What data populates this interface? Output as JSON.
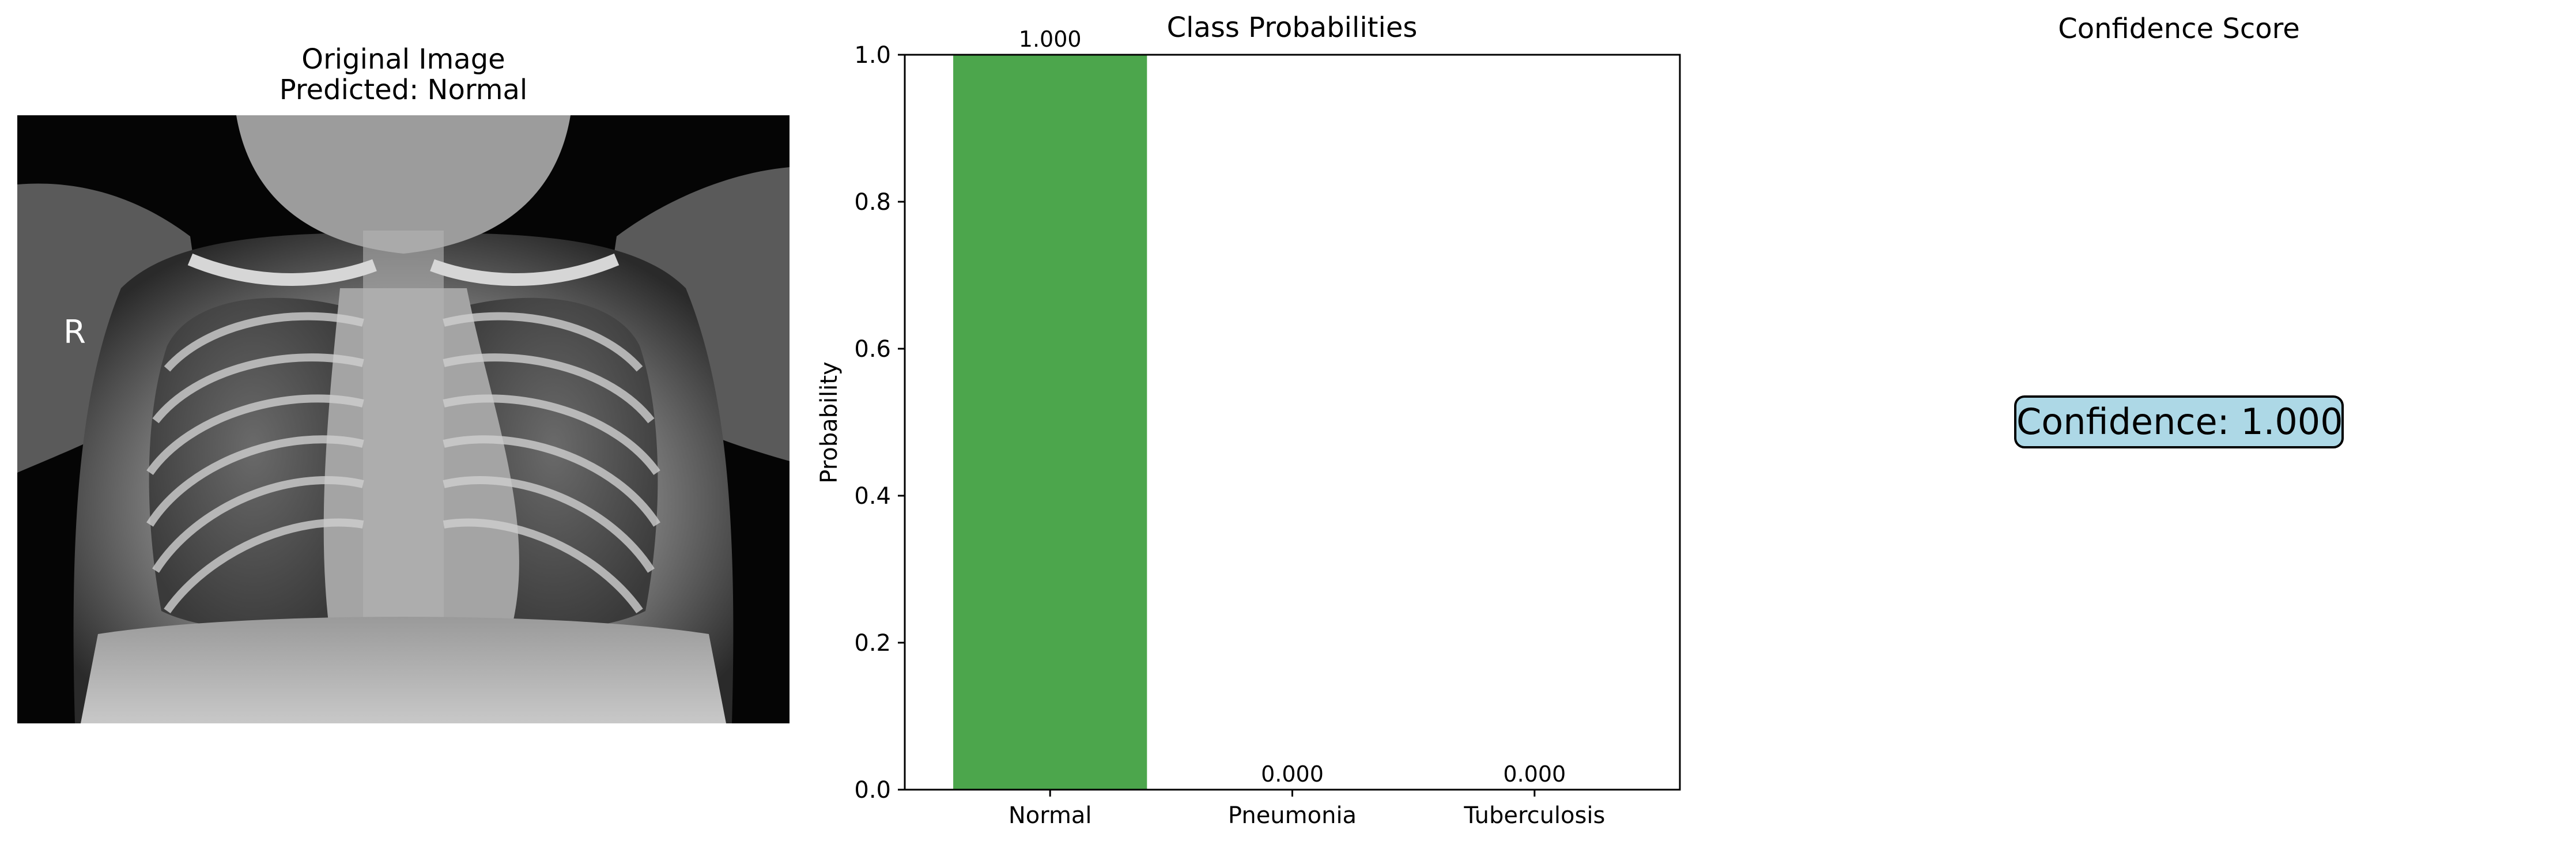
{
  "image_panel": {
    "title": "Original Image",
    "prediction": "Predicted: Normal",
    "marker": "R"
  },
  "confidence_panel": {
    "title": "Confidence Score",
    "label": "Confidence: 1.000",
    "box_color": "#add8e6"
  },
  "chart_data": {
    "type": "bar",
    "title": "Class Probabilities",
    "xlabel": "",
    "ylabel": "Probability",
    "categories": [
      "Normal",
      "Pneumonia",
      "Tuberculosis"
    ],
    "values": [
      1.0,
      0.0,
      0.0
    ],
    "value_labels": [
      "1.000",
      "0.000",
      "0.000"
    ],
    "ylim": [
      0,
      1.0
    ],
    "yticks": [
      0.0,
      0.2,
      0.4,
      0.6,
      0.8,
      1.0
    ],
    "ytick_labels": [
      "0.0",
      "0.2",
      "0.4",
      "0.6",
      "0.8",
      "1.0"
    ],
    "bar_color": "#4ca64c",
    "grid": false
  }
}
